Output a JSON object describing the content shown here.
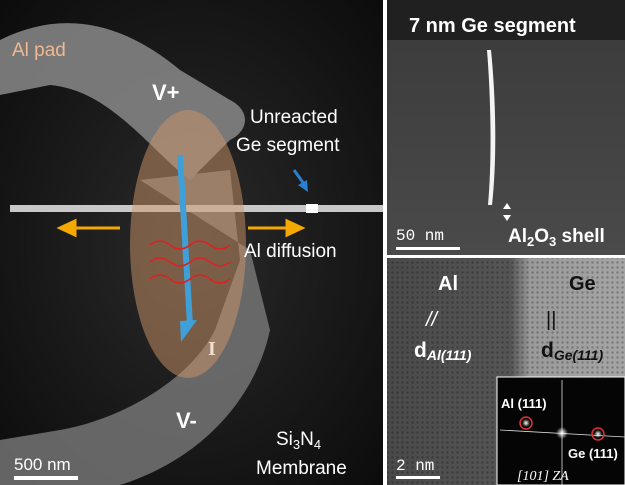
{
  "left_panel": {
    "pad_label": "Al pad",
    "v_plus": "V+",
    "unreacted": [
      "Unreacted",
      "Ge segment"
    ],
    "diffusion": "Al diffusion",
    "current": "I",
    "v_minus": "V-",
    "membrane": {
      "line1": [
        "Si",
        "3",
        "N",
        "4"
      ],
      "line2": "Membrane"
    },
    "scale_bar": "500 nm"
  },
  "top_right_panel": {
    "title": "7 nm Ge segment",
    "scale_bar": "50 nm",
    "shell": [
      "Al",
      "2",
      "O",
      "3",
      " shell"
    ]
  },
  "bottom_right_panel": {
    "al": "Al",
    "ge": "Ge",
    "al_symbol": "//",
    "ge_symbol": "||",
    "d_al": [
      "d",
      "Al(111)"
    ],
    "d_ge": [
      "d",
      "Ge(111)"
    ],
    "scale_bar": "2 nm",
    "inset": {
      "al_spot": "Al (111)",
      "ge_spot": "Ge (111)",
      "zone": "[101] ZA"
    }
  }
}
